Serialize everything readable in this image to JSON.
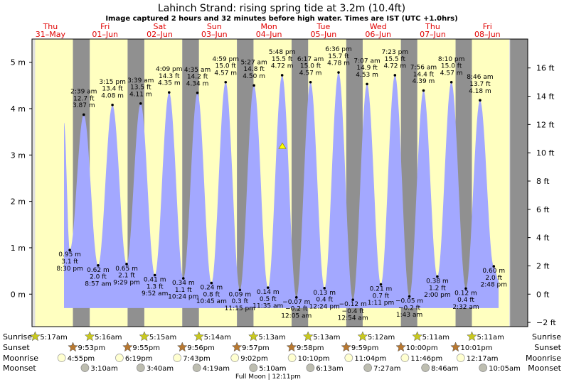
{
  "chart_data": {
    "type": "area",
    "title": "Lahinch Strand: rising  spring tide at 3.2m (10.4ft)",
    "subtitle": "Image captured 2 hours and 32 minutes before high water. Times are IST (UTC +1.0hrs)",
    "days": [
      {
        "dow": "Thu",
        "date": "31–May"
      },
      {
        "dow": "Fri",
        "date": "01–Jun"
      },
      {
        "dow": "Sat",
        "date": "02–Jun"
      },
      {
        "dow": "Sun",
        "date": "03–Jun"
      },
      {
        "dow": "Mon",
        "date": "04–Jun"
      },
      {
        "dow": "Tue",
        "date": "05–Jun"
      },
      {
        "dow": "Wed",
        "date": "06–Jun"
      },
      {
        "dow": "Thu",
        "date": "07–Jun"
      },
      {
        "dow": "Fri",
        "date": "08–Jun"
      }
    ],
    "ylim": [
      -0.7,
      5.5
    ],
    "y_ticks_m": [
      "0 m",
      "1 m",
      "2 m",
      "3 m",
      "4 m",
      "5 m"
    ],
    "y_ticks_ft": [
      "−2 ft",
      "0 ft",
      "2 ft",
      "4 ft",
      "6 ft",
      "8 ft",
      "10 ft",
      "12 ft",
      "14 ft",
      "16 ft"
    ],
    "start_height": 3.7,
    "end_height": 0.3,
    "extremes": [
      {
        "kind": "low",
        "time": "8:30 pm",
        "day": 0,
        "m": 0.95,
        "ft": "3.1 ft",
        "m_label": "0.95 m"
      },
      {
        "kind": "high",
        "time": "2:39 am",
        "day": 1,
        "m": 3.87,
        "ft": "12.7 ft",
        "m_label": "3.87 m"
      },
      {
        "kind": "low",
        "time": "8:57 am",
        "day": 1,
        "m": 0.62,
        "ft": "2.0 ft",
        "m_label": "0.62 m"
      },
      {
        "kind": "high",
        "time": "3:15 pm",
        "day": 1,
        "m": 4.08,
        "ft": "13.4 ft",
        "m_label": "4.08 m"
      },
      {
        "kind": "low",
        "time": "9:29 pm",
        "day": 1,
        "m": 0.65,
        "ft": "2.1 ft",
        "m_label": "0.65 m"
      },
      {
        "kind": "high",
        "time": "3:39 am",
        "day": 2,
        "m": 4.11,
        "ft": "13.5 ft",
        "m_label": "4.11 m"
      },
      {
        "kind": "low",
        "time": "9:52 am",
        "day": 2,
        "m": 0.41,
        "ft": "1.3 ft",
        "m_label": "0.41 m"
      },
      {
        "kind": "high",
        "time": "4:09 pm",
        "day": 2,
        "m": 4.35,
        "ft": "14.3 ft",
        "m_label": "4.35 m"
      },
      {
        "kind": "low",
        "time": "10:24 pm",
        "day": 2,
        "m": 0.34,
        "ft": "1.1 ft",
        "m_label": "0.34 m"
      },
      {
        "kind": "high",
        "time": "4:35 am",
        "day": 3,
        "m": 4.34,
        "ft": "14.2 ft",
        "m_label": "4.34 m"
      },
      {
        "kind": "low",
        "time": "10:45 am",
        "day": 3,
        "m": 0.24,
        "ft": "0.8 ft",
        "m_label": "0.24 m"
      },
      {
        "kind": "high",
        "time": "4:59 pm",
        "day": 3,
        "m": 4.57,
        "ft": "15.0 ft",
        "m_label": "4.57 m"
      },
      {
        "kind": "low",
        "time": "11:15 pm",
        "day": 3,
        "m": 0.09,
        "ft": "0.3 ft",
        "m_label": "0.09 m"
      },
      {
        "kind": "high",
        "time": "5:27 am",
        "day": 4,
        "m": 4.5,
        "ft": "14.8 ft",
        "m_label": "4.50 m"
      },
      {
        "kind": "low",
        "time": "11:35 am",
        "day": 4,
        "m": 0.14,
        "ft": "0.5 ft",
        "m_label": "0.14 m"
      },
      {
        "kind": "high",
        "time": "5:48 pm",
        "day": 4,
        "m": 4.72,
        "ft": "15.5 ft",
        "m_label": "4.72 m"
      },
      {
        "kind": "low",
        "time": "12:05 am",
        "day": 5,
        "m": -0.07,
        "ft": "−0.2 ft",
        "m_label": "−0.07 m"
      },
      {
        "kind": "high",
        "time": "6:17 am",
        "day": 5,
        "m": 4.57,
        "ft": "15.0 ft",
        "m_label": "4.57 m"
      },
      {
        "kind": "low",
        "time": "12:24 pm",
        "day": 5,
        "m": 0.13,
        "ft": "0.4 ft",
        "m_label": "0.13 m"
      },
      {
        "kind": "high",
        "time": "6:36 pm",
        "day": 5,
        "m": 4.78,
        "ft": "15.7 ft",
        "m_label": "4.78 m"
      },
      {
        "kind": "low",
        "time": "12:54 am",
        "day": 6,
        "m": -0.12,
        "ft": "−0.4 ft",
        "m_label": "−0.12 m"
      },
      {
        "kind": "high",
        "time": "7:07 am",
        "day": 6,
        "m": 4.53,
        "ft": "14.9 ft",
        "m_label": "4.53 m"
      },
      {
        "kind": "low",
        "time": "1:11 pm",
        "day": 6,
        "m": 0.21,
        "ft": "0.7 ft",
        "m_label": "0.21 m"
      },
      {
        "kind": "high",
        "time": "7:23 pm",
        "day": 6,
        "m": 4.72,
        "ft": "15.5 ft",
        "m_label": "4.72 m"
      },
      {
        "kind": "low",
        "time": "1:43 am",
        "day": 7,
        "m": -0.05,
        "ft": "−0.2 ft",
        "m_label": "−0.05 m"
      },
      {
        "kind": "high",
        "time": "7:56 am",
        "day": 7,
        "m": 4.39,
        "ft": "14.4 ft",
        "m_label": "4.39 m"
      },
      {
        "kind": "low",
        "time": "2:00 pm",
        "day": 7,
        "m": 0.38,
        "ft": "1.2 ft",
        "m_label": "0.38 m"
      },
      {
        "kind": "high",
        "time": "8:10 pm",
        "day": 7,
        "m": 4.57,
        "ft": "15.0 ft",
        "m_label": "4.57 m"
      },
      {
        "kind": "low",
        "time": "2:32 am",
        "day": 8,
        "m": 0.12,
        "ft": "0.4 ft",
        "m_label": "0.12 m"
      },
      {
        "kind": "high",
        "time": "8:46 am",
        "day": 8,
        "m": 4.18,
        "ft": "13.7 ft",
        "m_label": "4.18 m"
      },
      {
        "kind": "low",
        "time": "2:48 pm",
        "day": 8,
        "m": 0.6,
        "ft": "2.0 ft",
        "m_label": "0.60 m"
      }
    ],
    "current_marker": {
      "m": 3.2
    },
    "sun_moon_labels": {
      "sunrise": "Sunrise",
      "sunset": "Sunset",
      "moonrise": "Moonrise",
      "moonset": "Moonset"
    },
    "sunrise": [
      "5:17am",
      "5:16am",
      "5:15am",
      "5:14am",
      "5:13am",
      "5:13am",
      "5:12am",
      "5:11am",
      "5:11am"
    ],
    "sunset": [
      "9:53pm",
      "9:55pm",
      "9:56pm",
      "9:57pm",
      "9:58pm",
      "9:59pm",
      "10:00pm",
      "10:01pm"
    ],
    "moonrise": [
      "4:55pm",
      "6:19pm",
      "7:43pm",
      "9:02pm",
      "10:10pm",
      "11:04pm",
      "11:46pm",
      "12:17am"
    ],
    "moonset": [
      "3:10am",
      "3:40am",
      "4:19am",
      "5:10am",
      "6:13am",
      "7:27am",
      "8:46am",
      "10:05am"
    ],
    "full_moon_text": "Full Moon | 12:11pm",
    "colors": {
      "day": "#ffffc0",
      "night": "#909090",
      "water": "#a3a8ff",
      "outside": "#e0e0e0",
      "day_label": "#e00000",
      "sun_star": "#c8c820",
      "sunset_star": "#b87830",
      "marker": "#ffff00"
    }
  }
}
